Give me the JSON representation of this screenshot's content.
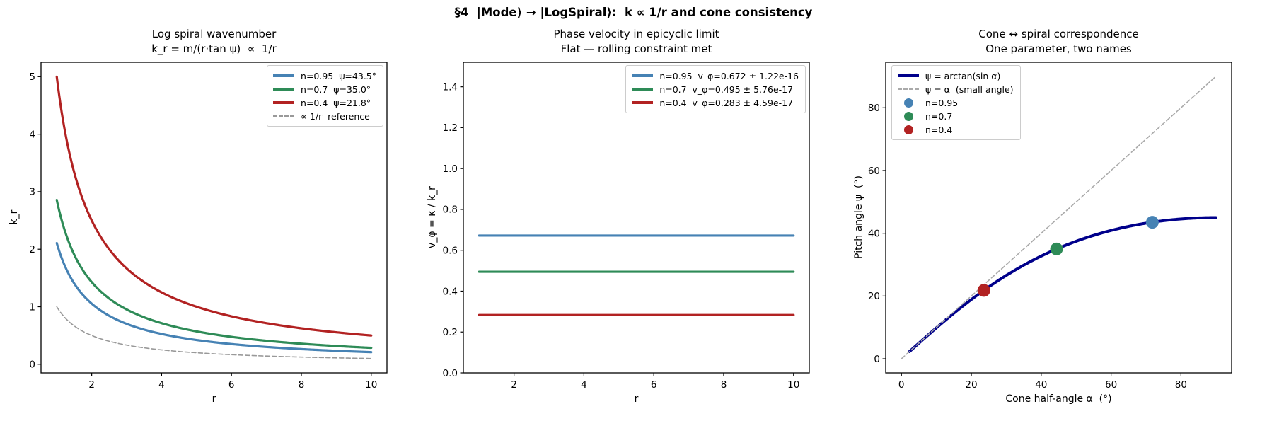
{
  "suptitle": "§4  |Mode⟩ → |LogSpiral⟩:  k ∝ 1/r and cone consistency",
  "colors": {
    "series_blue": "#4682B4",
    "series_green": "#2E8B57",
    "series_red": "#B22222",
    "navy_curve": "#00008B",
    "reference_gray": "#999999",
    "axes": "#000000",
    "legend_border": "#CCCCCC"
  },
  "chart_data": [
    {
      "type": "line",
      "title": "Log spiral wavenumber",
      "subtitle": "k_r = m/(r·tan ψ)  ∝  1/r",
      "xlabel": "r",
      "ylabel": "k_r",
      "xlim": [
        0.55,
        10.45
      ],
      "ylim": [
        -0.15,
        5.25
      ],
      "xtick_values": [
        2,
        4,
        6,
        8,
        10
      ],
      "xtick_labels": [
        "2",
        "4",
        "6",
        "8",
        "10"
      ],
      "ytick_values": [
        0,
        1,
        2,
        3,
        4,
        5
      ],
      "ytick_labels": [
        "0",
        "1",
        "2",
        "3",
        "4",
        "5"
      ],
      "grid": false,
      "legend": {
        "position": "top-right"
      },
      "series": [
        {
          "label": "n=0.95  ψ=43.5°",
          "color": "#4682B4",
          "lw": 3.2,
          "fn": "inverse",
          "coef": 2.107,
          "x_range": [
            1,
            10
          ]
        },
        {
          "label": "n=0.7  ψ=35.0°",
          "color": "#2E8B57",
          "lw": 3.2,
          "fn": "inverse",
          "coef": 2.857,
          "x_range": [
            1,
            10
          ]
        },
        {
          "label": "n=0.4  ψ=21.8°",
          "color": "#B22222",
          "lw": 3.2,
          "fn": "inverse",
          "coef": 5.0,
          "x_range": [
            1,
            10
          ]
        },
        {
          "label": "∝ 1/r  reference",
          "color": "#999999",
          "lw": 1.6,
          "dash": "6,3.5",
          "fn": "inverse",
          "coef": 1.0,
          "x_range": [
            1,
            10
          ]
        }
      ]
    },
    {
      "type": "line",
      "title": "Phase velocity in epicyclic limit",
      "subtitle": "Flat — rolling constraint met",
      "xlabel": "r",
      "ylabel": "v_φ = κ / k_r",
      "xlim": [
        0.55,
        10.45
      ],
      "ylim": [
        0,
        1.52
      ],
      "xtick_values": [
        2,
        4,
        6,
        8,
        10
      ],
      "xtick_labels": [
        "2",
        "4",
        "6",
        "8",
        "10"
      ],
      "ytick_values": [
        0,
        0.2,
        0.4,
        0.6,
        0.8,
        1.0,
        1.2,
        1.4
      ],
      "ytick_labels": [
        "0.0",
        "0.2",
        "0.4",
        "0.6",
        "0.8",
        "1.0",
        "1.2",
        "1.4"
      ],
      "grid": false,
      "legend": {
        "position": "top-right"
      },
      "series": [
        {
          "label": "n=0.95  v_φ=0.672 ± 1.22e-16",
          "color": "#4682B4",
          "lw": 3.2,
          "fn": "constant",
          "value": 0.672,
          "x_range": [
            1,
            10
          ]
        },
        {
          "label": "n=0.7  v_φ=0.495 ± 5.76e-17",
          "color": "#2E8B57",
          "lw": 3.2,
          "fn": "constant",
          "value": 0.495,
          "x_range": [
            1,
            10
          ]
        },
        {
          "label": "n=0.4  v_φ=0.283 ± 4.59e-17",
          "color": "#B22222",
          "lw": 3.2,
          "fn": "constant",
          "value": 0.283,
          "x_range": [
            1,
            10
          ]
        }
      ]
    },
    {
      "type": "line",
      "title": "Cone ↔ spiral correspondence",
      "subtitle": "One parameter, two names",
      "xlabel": "Cone half-angle α  (°)",
      "ylabel": "Pitch angle ψ  (°)",
      "xlim": [
        -4.5,
        94.5
      ],
      "ylim": [
        -4.5,
        94.5
      ],
      "xtick_values": [
        0,
        20,
        40,
        60,
        80
      ],
      "xtick_labels": [
        "0",
        "20",
        "40",
        "60",
        "80"
      ],
      "ytick_values": [
        0,
        20,
        40,
        60,
        80
      ],
      "ytick_labels": [
        "0",
        "20",
        "40",
        "60",
        "80"
      ],
      "grid": false,
      "legend": {
        "position": "top-left"
      },
      "series": [
        {
          "label": "ψ = arctan(sin α)",
          "color": "#00008B",
          "lw": 4.0,
          "fn": "atan_sin_deg",
          "x_range": [
            2.3,
            90
          ]
        },
        {
          "label": "ψ = α  (small angle)",
          "color": "#AAAAAA",
          "lw": 1.6,
          "dash": "6,3.5",
          "fn": "identity",
          "x_range": [
            0,
            90
          ]
        },
        {
          "label": "n=0.95",
          "color": "#4682B4",
          "points": [
            [
              71.8,
              43.5
            ]
          ],
          "size": 9
        },
        {
          "label": "n=0.7",
          "color": "#2E8B57",
          "points": [
            [
              44.4,
              35.0
            ]
          ],
          "size": 9
        },
        {
          "label": "n=0.4",
          "color": "#B22222",
          "points": [
            [
              23.6,
              21.8
            ]
          ],
          "size": 9
        }
      ]
    }
  ]
}
